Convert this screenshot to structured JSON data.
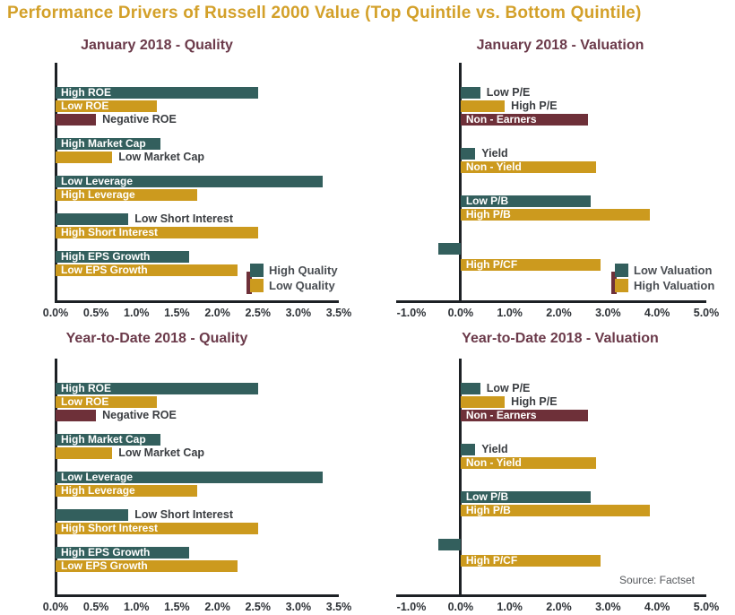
{
  "page": {
    "title": "Performance Drivers of Russell 2000 Value (Top Quintile vs. Bottom Quintile)",
    "source_note": "Source: Factset"
  },
  "colors": {
    "teal": "#335F5D",
    "gold": "#CC9A1E",
    "maroon": "#6E3039",
    "main_title": "#D3A029",
    "chart_title": "#6B3A4A",
    "axis": "#1D2125",
    "tick_text": "#2E3237",
    "outside_label_text": "#3A3D41",
    "inside_label_text": "#FFFFFF",
    "legend_text": "#494D52",
    "source_text": "#54575B"
  },
  "chart_data": [
    {
      "type": "bar",
      "orientation": "horizontal",
      "title": "January 2018 - Quality",
      "xlabel": "",
      "ylabel": "",
      "unit": "%",
      "xlim": [
        0,
        3.5
      ],
      "grid": false,
      "tick_values": [
        0,
        0.5,
        1,
        1.5,
        2,
        2.5,
        3,
        3.5
      ],
      "tick_labels": [
        "0.0%",
        "0.5%",
        "1.0%",
        "1.5%",
        "2.0%",
        "2.5%",
        "3.0%",
        "3.5%"
      ],
      "legend": {
        "position": "inside-bottom-right",
        "accent_strip_color": "maroon",
        "entries": [
          {
            "label": "High Quality",
            "color": "teal"
          },
          {
            "label": "Low Quality",
            "color": "gold"
          }
        ]
      },
      "groups": [
        {
          "bars": [
            {
              "label": "High ROE",
              "value": 2.5,
              "color": "teal",
              "label_placement": "inside"
            },
            {
              "label": "Low ROE",
              "value": 1.25,
              "color": "gold",
              "label_placement": "inside"
            },
            {
              "label": "Negative ROE",
              "value": 0.5,
              "color": "maroon",
              "label_placement": "outside"
            }
          ]
        },
        {
          "bars": [
            {
              "label": "High Market Cap",
              "value": 1.3,
              "color": "teal",
              "label_placement": "inside"
            },
            {
              "label": "Low Market Cap",
              "value": 0.7,
              "color": "gold",
              "label_placement": "outside"
            }
          ]
        },
        {
          "bars": [
            {
              "label": "Low Leverage",
              "value": 3.3,
              "color": "teal",
              "label_placement": "inside"
            },
            {
              "label": "High Leverage",
              "value": 1.75,
              "color": "gold",
              "label_placement": "inside"
            }
          ]
        },
        {
          "bars": [
            {
              "label": "Low Short Interest",
              "value": 0.9,
              "color": "teal",
              "label_placement": "outside"
            },
            {
              "label": "High Short Interest",
              "value": 2.5,
              "color": "gold",
              "label_placement": "inside"
            }
          ]
        },
        {
          "bars": [
            {
              "label": "High EPS Growth",
              "value": 1.65,
              "color": "teal",
              "label_placement": "inside"
            },
            {
              "label": "Low EPS Growth",
              "value": 2.25,
              "color": "gold",
              "label_placement": "inside"
            }
          ]
        }
      ]
    },
    {
      "type": "bar",
      "orientation": "horizontal",
      "title": "January 2018 - Valuation",
      "xlabel": "",
      "ylabel": "",
      "unit": "%",
      "xlim": [
        -1,
        5
      ],
      "grid": false,
      "tick_values": [
        -1,
        0,
        1,
        2,
        3,
        4,
        5
      ],
      "tick_labels": [
        "-1.0%",
        "0.0%",
        "1.0%",
        "2.0%",
        "3.0%",
        "4.0%",
        "5.0%"
      ],
      "legend": {
        "position": "inside-bottom-right",
        "accent_strip_color": "maroon",
        "entries": [
          {
            "label": "Low Valuation",
            "color": "teal"
          },
          {
            "label": "High Valuation",
            "color": "gold"
          }
        ]
      },
      "groups": [
        {
          "bars": [
            {
              "label": "Low P/E",
              "value": 0.4,
              "color": "teal",
              "label_placement": "outside"
            },
            {
              "label": "High P/E",
              "value": 0.9,
              "color": "gold",
              "label_placement": "outside"
            },
            {
              "label": "Non - Earners",
              "value": 2.6,
              "color": "maroon",
              "label_placement": "inside"
            }
          ]
        },
        {
          "bars": [
            {
              "label": "Yield",
              "value": 0.3,
              "color": "teal",
              "label_placement": "outside"
            },
            {
              "label": "Non - Yield",
              "value": 2.75,
              "color": "gold",
              "label_placement": "inside"
            }
          ]
        },
        {
          "bars": [
            {
              "label": "Low P/B",
              "value": 2.65,
              "color": "teal",
              "label_placement": "inside"
            },
            {
              "label": "High P/B",
              "value": 3.85,
              "color": "gold",
              "label_placement": "inside"
            }
          ]
        },
        {
          "bars": [
            {
              "label": "",
              "value": -0.45,
              "color": "teal",
              "label_placement": "none"
            },
            {
              "label": "High P/CF",
              "value": 2.85,
              "color": "gold",
              "label_placement": "inside",
              "extra_gap_before": 3
            }
          ]
        }
      ]
    },
    {
      "type": "bar",
      "orientation": "horizontal",
      "title": "Year-to-Date 2018 - Quality",
      "xlabel": "",
      "ylabel": "",
      "unit": "%",
      "xlim": [
        0,
        3.5
      ],
      "grid": false,
      "tick_values": [
        0,
        0.5,
        1,
        1.5,
        2,
        2.5,
        3,
        3.5
      ],
      "tick_labels": [
        "0.0%",
        "0.5%",
        "1.0%",
        "1.5%",
        "2.0%",
        "2.5%",
        "3.0%",
        "3.5%"
      ],
      "legend": null,
      "groups": [
        {
          "bars": [
            {
              "label": "High ROE",
              "value": 2.5,
              "color": "teal",
              "label_placement": "inside"
            },
            {
              "label": "Low ROE",
              "value": 1.25,
              "color": "gold",
              "label_placement": "inside"
            },
            {
              "label": "Negative ROE",
              "value": 0.5,
              "color": "maroon",
              "label_placement": "outside"
            }
          ]
        },
        {
          "bars": [
            {
              "label": "High Market Cap",
              "value": 1.3,
              "color": "teal",
              "label_placement": "inside"
            },
            {
              "label": "Low Market Cap",
              "value": 0.7,
              "color": "gold",
              "label_placement": "outside"
            }
          ]
        },
        {
          "bars": [
            {
              "label": "Low Leverage",
              "value": 3.3,
              "color": "teal",
              "label_placement": "inside"
            },
            {
              "label": "High Leverage",
              "value": 1.75,
              "color": "gold",
              "label_placement": "inside"
            }
          ]
        },
        {
          "bars": [
            {
              "label": "Low Short Interest",
              "value": 0.9,
              "color": "teal",
              "label_placement": "outside"
            },
            {
              "label": "High Short Interest",
              "value": 2.5,
              "color": "gold",
              "label_placement": "inside"
            }
          ]
        },
        {
          "bars": [
            {
              "label": "High EPS Growth",
              "value": 1.65,
              "color": "teal",
              "label_placement": "inside"
            },
            {
              "label": "Low EPS Growth",
              "value": 2.25,
              "color": "gold",
              "label_placement": "inside"
            }
          ]
        }
      ]
    },
    {
      "type": "bar",
      "orientation": "horizontal",
      "title": "Year-to-Date 2018 - Valuation",
      "xlabel": "",
      "ylabel": "",
      "unit": "%",
      "xlim": [
        -1,
        5
      ],
      "grid": false,
      "tick_values": [
        -1,
        0,
        1,
        2,
        3,
        4,
        5
      ],
      "tick_labels": [
        "-1.0%",
        "0.0%",
        "1.0%",
        "2.0%",
        "3.0%",
        "4.0%",
        "5.0%"
      ],
      "legend": null,
      "groups": [
        {
          "bars": [
            {
              "label": "Low P/E",
              "value": 0.4,
              "color": "teal",
              "label_placement": "outside"
            },
            {
              "label": "High P/E",
              "value": 0.9,
              "color": "gold",
              "label_placement": "outside"
            },
            {
              "label": "Non - Earners",
              "value": 2.6,
              "color": "maroon",
              "label_placement": "inside"
            }
          ]
        },
        {
          "bars": [
            {
              "label": "Yield",
              "value": 0.3,
              "color": "teal",
              "label_placement": "outside"
            },
            {
              "label": "Non - Yield",
              "value": 2.75,
              "color": "gold",
              "label_placement": "inside"
            }
          ]
        },
        {
          "bars": [
            {
              "label": "Low P/B",
              "value": 2.65,
              "color": "teal",
              "label_placement": "inside"
            },
            {
              "label": "High P/B",
              "value": 3.85,
              "color": "gold",
              "label_placement": "inside"
            }
          ]
        },
        {
          "bars": [
            {
              "label": "",
              "value": -0.45,
              "color": "teal",
              "label_placement": "none"
            },
            {
              "label": "High P/CF",
              "value": 2.85,
              "color": "gold",
              "label_placement": "inside",
              "extra_gap_before": 3
            }
          ]
        }
      ]
    }
  ]
}
